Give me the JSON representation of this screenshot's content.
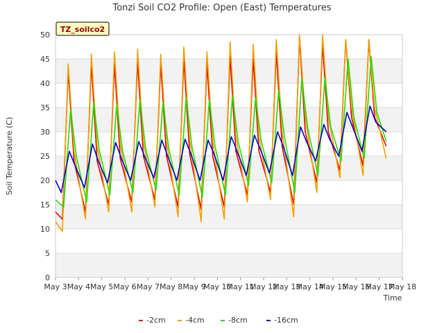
{
  "chart_data": {
    "type": "line",
    "title": "Tonzi Soil CO2 Profile: Open (East) Temperatures",
    "xlabel": "Time",
    "ylabel": "Soil Temperature (C)",
    "badge": "TZ_soilco2",
    "x_ticks": [
      "May 3",
      "May 4",
      "May 5",
      "May 6",
      "May 7",
      "May 8",
      "May 9",
      "May 10",
      "May 11",
      "May 12",
      "May 13",
      "May 14",
      "May 15",
      "May 16",
      "May 17",
      "May 18"
    ],
    "xlim": [
      3,
      18
    ],
    "ylim": [
      0,
      50
    ],
    "y_ticks": [
      0,
      5,
      10,
      15,
      20,
      25,
      30,
      35,
      40,
      45,
      50
    ],
    "grid": true,
    "legend_position": "bottom",
    "series": [
      {
        "name": "-2cm",
        "color": "#dd0000",
        "days": [
          3.0,
          3.3,
          3.55,
          3.8,
          4.3,
          4.55,
          4.8,
          5.3,
          5.55,
          5.8,
          6.3,
          6.55,
          6.8,
          7.3,
          7.55,
          7.8,
          8.3,
          8.55,
          8.8,
          9.3,
          9.55,
          9.8,
          10.3,
          10.55,
          10.8,
          11.3,
          11.55,
          11.8,
          12.3,
          12.55,
          12.8,
          13.3,
          13.55,
          13.8,
          14.3,
          14.55,
          14.8,
          15.3,
          15.55,
          15.8,
          16.3,
          16.55,
          16.8,
          17.3
        ],
        "values": [
          13.5,
          12.0,
          42.5,
          24.0,
          13.5,
          44.0,
          24.0,
          15.0,
          44.0,
          24.5,
          15.5,
          44.5,
          25.0,
          16.0,
          44.0,
          25.0,
          14.5,
          45.0,
          25.5,
          14.0,
          44.0,
          25.0,
          14.5,
          45.5,
          26.0,
          17.0,
          45.0,
          26.0,
          17.5,
          46.5,
          27.0,
          15.0,
          49.5,
          30.0,
          19.5,
          48.0,
          30.0,
          22.0,
          49.0,
          33.0,
          23.0,
          49.0,
          33.0,
          27.0
        ]
      },
      {
        "name": "-4cm",
        "color": "#f0a000",
        "days": [
          3.0,
          3.3,
          3.55,
          3.8,
          4.3,
          4.55,
          4.8,
          5.3,
          5.55,
          5.8,
          6.3,
          6.55,
          6.8,
          7.3,
          7.55,
          7.8,
          8.3,
          8.55,
          8.8,
          9.3,
          9.55,
          9.8,
          10.3,
          10.55,
          10.8,
          11.3,
          11.55,
          11.8,
          12.3,
          12.55,
          12.8,
          13.3,
          13.55,
          13.8,
          14.3,
          14.55,
          14.8,
          15.3,
          15.55,
          15.8,
          16.3,
          16.55,
          16.8,
          17.3
        ],
        "values": [
          11.5,
          9.5,
          44.0,
          26.0,
          12.0,
          46.0,
          27.0,
          13.5,
          46.5,
          27.5,
          13.5,
          47.0,
          28.0,
          14.5,
          46.0,
          28.0,
          12.5,
          47.5,
          28.5,
          11.5,
          46.5,
          28.0,
          12.0,
          48.5,
          29.0,
          15.5,
          48.0,
          29.0,
          16.0,
          49.0,
          30.0,
          12.5,
          50.0,
          33.0,
          17.5,
          50.0,
          33.0,
          20.5,
          49.0,
          35.0,
          21.0,
          49.0,
          35.0,
          24.5
        ]
      },
      {
        "name": "-8cm",
        "color": "#22dd00",
        "days": [
          3.0,
          3.35,
          3.65,
          3.9,
          4.35,
          4.65,
          4.9,
          5.35,
          5.65,
          5.9,
          6.35,
          6.65,
          6.9,
          7.35,
          7.65,
          7.9,
          8.35,
          8.65,
          8.9,
          9.35,
          9.65,
          9.9,
          10.35,
          10.65,
          10.9,
          11.35,
          11.65,
          11.9,
          12.35,
          12.65,
          12.9,
          13.35,
          13.65,
          13.9,
          14.35,
          14.65,
          14.9,
          15.35,
          15.65,
          15.9,
          16.35,
          16.65,
          16.9,
          17.3
        ],
        "values": [
          16.0,
          14.5,
          34.5,
          25.0,
          15.5,
          36.0,
          26.0,
          17.0,
          35.5,
          26.0,
          17.5,
          36.5,
          26.5,
          18.0,
          36.0,
          26.5,
          17.0,
          37.0,
          27.0,
          16.5,
          36.5,
          27.0,
          17.0,
          37.5,
          28.0,
          19.0,
          37.0,
          28.0,
          19.5,
          38.5,
          29.0,
          17.5,
          41.0,
          31.0,
          21.0,
          41.0,
          31.0,
          24.0,
          45.0,
          33.0,
          24.5,
          45.5,
          34.0,
          28.0
        ]
      },
      {
        "name": "-16cm",
        "color": "#0000cc",
        "days": [
          3.0,
          3.25,
          3.6,
          3.85,
          4.25,
          4.6,
          4.85,
          5.25,
          5.6,
          5.85,
          6.25,
          6.6,
          6.85,
          7.25,
          7.6,
          7.85,
          8.25,
          8.6,
          8.85,
          9.25,
          9.6,
          9.85,
          10.25,
          10.6,
          10.85,
          11.25,
          11.6,
          11.85,
          12.25,
          12.6,
          12.85,
          13.25,
          13.6,
          13.85,
          14.25,
          14.6,
          14.85,
          15.25,
          15.6,
          15.85,
          16.25,
          16.6,
          16.85,
          17.3
        ],
        "values": [
          20.0,
          17.5,
          26.0,
          23.0,
          18.5,
          27.5,
          24.0,
          19.5,
          27.8,
          24.5,
          20.0,
          28.0,
          25.0,
          20.5,
          28.3,
          25.0,
          20.0,
          28.5,
          25.5,
          20.0,
          28.3,
          25.5,
          20.0,
          29.0,
          26.0,
          21.0,
          29.3,
          26.5,
          21.5,
          30.0,
          27.0,
          21.0,
          31.0,
          28.0,
          24.0,
          31.5,
          28.5,
          25.0,
          34.0,
          31.0,
          26.0,
          35.3,
          32.0,
          30.0
        ]
      }
    ]
  }
}
